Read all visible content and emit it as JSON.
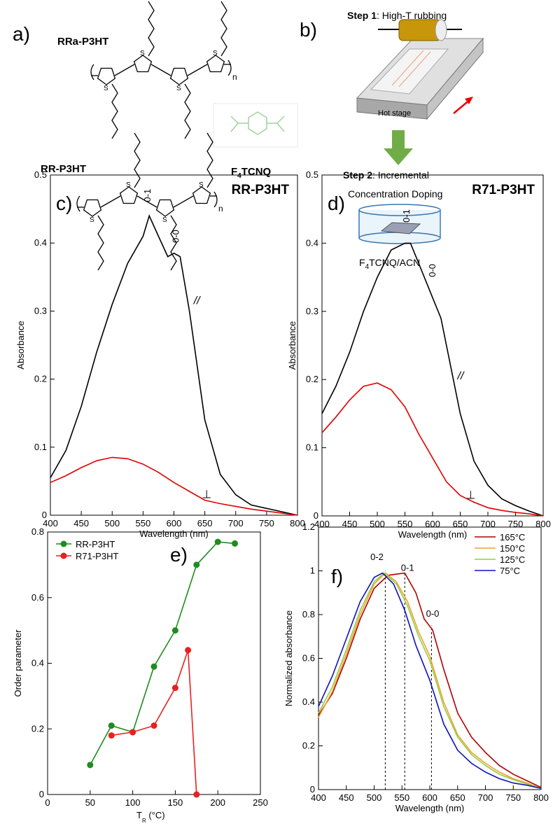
{
  "panel_a": {
    "label": "a)",
    "polymers": [
      "RRa-P3HT",
      "RR-P3HT"
    ],
    "ring_atom": "S",
    "repeat_index": "n",
    "dopant": {
      "main": "F",
      "sub": "4",
      "rest": "TCNQ"
    }
  },
  "panel_b": {
    "label": "b)",
    "step1": {
      "name": "Step 1",
      "text": ": High-T rubbing"
    },
    "stage_label": "Hot stage",
    "step2": {
      "name": "Step 2",
      "text": ": Incremental",
      "text2": "Concentration Doping"
    },
    "solution": {
      "main": "F",
      "sub": "4",
      "rest": "TCNQ/ACN"
    }
  },
  "chart_data": [
    {
      "type": "line",
      "panel_label": "c)",
      "title": "RR-P3HT",
      "title_color": "#548235",
      "x_label": "Wavelength (nm)",
      "y_label": "Absorbance",
      "xlim": [
        400,
        800
      ],
      "xticks": [
        400,
        450,
        500,
        550,
        600,
        650,
        700,
        750,
        800
      ],
      "ylim": [
        0,
        0.5
      ],
      "yticks": [
        0,
        0.1,
        0.2,
        0.3,
        0.4,
        0.5
      ],
      "annotations": [
        "0-1",
        "0-0"
      ],
      "series": [
        {
          "name": "//",
          "color": "#000000",
          "x": [
            400,
            425,
            450,
            475,
            500,
            525,
            550,
            560,
            575,
            590,
            600,
            610,
            625,
            650,
            675,
            700,
            725,
            750,
            775,
            800
          ],
          "values": [
            0.055,
            0.095,
            0.16,
            0.24,
            0.31,
            0.37,
            0.41,
            0.44,
            0.41,
            0.38,
            0.385,
            0.38,
            0.3,
            0.14,
            0.06,
            0.03,
            0.015,
            0.01,
            0.005,
            0
          ]
        },
        {
          "name": "⊥",
          "color": "#e00000",
          "x": [
            400,
            425,
            450,
            475,
            500,
            525,
            550,
            575,
            600,
            625,
            650,
            675,
            700,
            725,
            750,
            775,
            800
          ],
          "values": [
            0.048,
            0.058,
            0.07,
            0.08,
            0.085,
            0.083,
            0.075,
            0.063,
            0.048,
            0.035,
            0.022,
            0.017,
            0.013,
            0.009,
            0.006,
            0.003,
            0
          ]
        }
      ]
    },
    {
      "type": "line",
      "panel_label": "d)",
      "title": "R71-P3HT",
      "title_color": "#ff0000",
      "x_label": "Wavelength (nm)",
      "y_label": "Absorbance",
      "xlim": [
        400,
        800
      ],
      "xticks": [
        400,
        450,
        500,
        550,
        600,
        650,
        700,
        750,
        800
      ],
      "ylim": [
        0,
        0.5
      ],
      "yticks": [
        0,
        0.1,
        0.2,
        0.3,
        0.4,
        0.5
      ],
      "annotations": [
        "0-1",
        "0-0"
      ],
      "series": [
        {
          "name": "//",
          "color": "#000000",
          "x": [
            400,
            425,
            450,
            475,
            500,
            525,
            550,
            560,
            575,
            600,
            615,
            625,
            650,
            675,
            700,
            725,
            750,
            775,
            800
          ],
          "values": [
            0.15,
            0.19,
            0.24,
            0.3,
            0.35,
            0.39,
            0.4,
            0.4,
            0.37,
            0.32,
            0.29,
            0.25,
            0.15,
            0.08,
            0.045,
            0.025,
            0.015,
            0.007,
            0
          ]
        },
        {
          "name": "⊥",
          "color": "#e00000",
          "x": [
            400,
            425,
            450,
            475,
            500,
            525,
            550,
            575,
            600,
            625,
            650,
            675,
            700,
            725,
            750,
            775,
            800
          ],
          "values": [
            0.122,
            0.145,
            0.17,
            0.19,
            0.195,
            0.185,
            0.16,
            0.12,
            0.085,
            0.05,
            0.03,
            0.02,
            0.012,
            0.008,
            0.005,
            0.003,
            0
          ]
        }
      ]
    },
    {
      "type": "line",
      "panel_label": "e)",
      "markers": true,
      "legend": "upper left",
      "x_label": {
        "main": "T",
        "sub": "R",
        "rest": " (°C)"
      },
      "y_label": "Order parameter",
      "xlim": [
        0,
        250
      ],
      "xticks": [
        0,
        50,
        100,
        150,
        200,
        250
      ],
      "ylim": [
        0,
        0.8
      ],
      "yticks": [
        0,
        0.2,
        0.4,
        0.6,
        0.8
      ],
      "series": [
        {
          "name": "RR-P3HT",
          "color": "#1e8c1e",
          "x": [
            50,
            75,
            100,
            125,
            150,
            175,
            200,
            220
          ],
          "values": [
            0.09,
            0.21,
            0.19,
            0.39,
            0.5,
            0.7,
            0.77,
            0.765
          ]
        },
        {
          "name": "R71-P3HT",
          "color": "#e82020",
          "x": [
            75,
            100,
            125,
            150,
            165,
            175
          ],
          "values": [
            0.18,
            0.19,
            0.21,
            0.325,
            0.44,
            0
          ]
        }
      ]
    },
    {
      "type": "line",
      "panel_label": "f)",
      "legend": "upper right",
      "x_label": "Wavelength (nm)",
      "y_label": "Normalized absorbance",
      "xlim": [
        400,
        800
      ],
      "xticks": [
        400,
        450,
        500,
        550,
        600,
        650,
        700,
        750,
        800
      ],
      "ylim": [
        0,
        1.2
      ],
      "yticks": [
        0,
        0.2,
        0.4,
        0.6,
        0.8,
        1,
        1.2
      ],
      "annotations": [
        "0-2",
        "0-1",
        "0-0"
      ],
      "vlines": [
        520,
        555,
        603
      ],
      "series": [
        {
          "name": "165°C",
          "color": "#b00000",
          "x": [
            400,
            425,
            450,
            475,
            500,
            525,
            540,
            555,
            575,
            590,
            605,
            625,
            650,
            675,
            700,
            725,
            750,
            775,
            800
          ],
          "values": [
            0.34,
            0.44,
            0.6,
            0.78,
            0.92,
            0.98,
            0.985,
            0.99,
            0.9,
            0.78,
            0.73,
            0.55,
            0.35,
            0.24,
            0.17,
            0.11,
            0.07,
            0.04,
            0.01
          ]
        },
        {
          "name": "150°C",
          "color": "#f0a030",
          "x": [
            400,
            425,
            450,
            475,
            500,
            520,
            540,
            560,
            580,
            600,
            625,
            650,
            675,
            700,
            725,
            750,
            775,
            800
          ],
          "values": [
            0.33,
            0.45,
            0.62,
            0.8,
            0.94,
            0.99,
            0.95,
            0.86,
            0.72,
            0.61,
            0.4,
            0.25,
            0.17,
            0.12,
            0.08,
            0.05,
            0.03,
            0.005
          ]
        },
        {
          "name": "125°C",
          "color": "#90d040",
          "x": [
            400,
            425,
            450,
            475,
            500,
            518,
            540,
            560,
            580,
            600,
            625,
            650,
            675,
            700,
            725,
            750,
            775,
            800
          ],
          "values": [
            0.35,
            0.47,
            0.64,
            0.82,
            0.95,
            0.99,
            0.94,
            0.84,
            0.7,
            0.59,
            0.38,
            0.24,
            0.16,
            0.11,
            0.07,
            0.045,
            0.025,
            0.005
          ]
        },
        {
          "name": "75°C",
          "color": "#1010c0",
          "x": [
            400,
            425,
            450,
            475,
            500,
            515,
            535,
            555,
            575,
            600,
            625,
            650,
            675,
            700,
            725,
            750,
            775,
            800
          ],
          "values": [
            0.38,
            0.52,
            0.69,
            0.86,
            0.97,
            0.99,
            0.94,
            0.82,
            0.66,
            0.5,
            0.3,
            0.18,
            0.12,
            0.08,
            0.05,
            0.03,
            0.02,
            0.005
          ]
        }
      ]
    }
  ]
}
